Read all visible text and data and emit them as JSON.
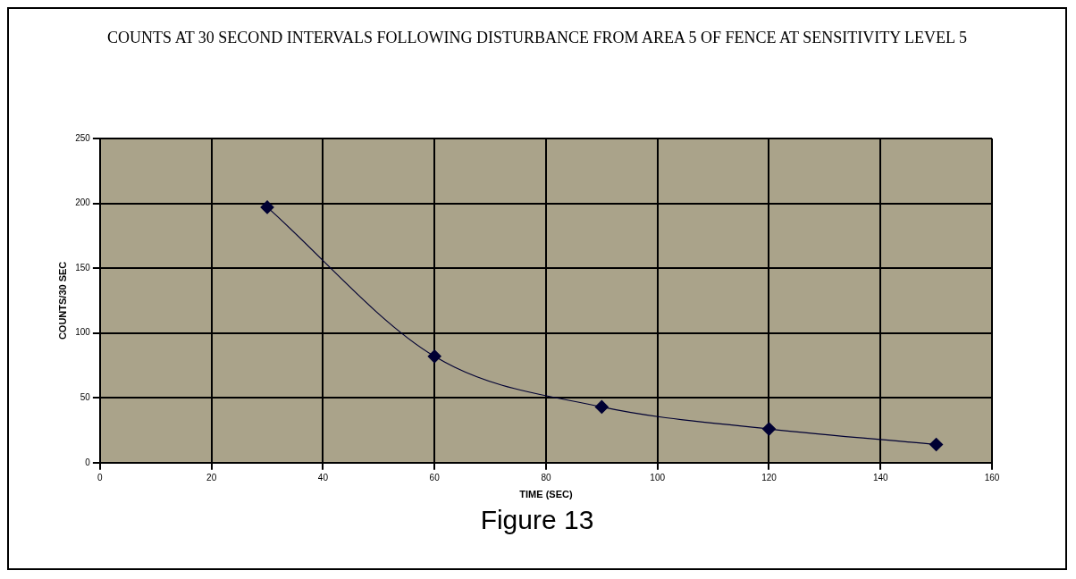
{
  "chart_data": {
    "type": "line",
    "title": "COUNTS AT 30 SECOND INTERVALS FOLLOWING DISTURBANCE FROM AREA 5 OF FENCE AT SENSITIVITY LEVEL 5",
    "xlabel": "TIME (SEC)",
    "ylabel": "COUNTS/30 SEC",
    "x": [
      30,
      60,
      90,
      120,
      150
    ],
    "series": [
      {
        "color": "#000033",
        "values": [
          197,
          82,
          43,
          26,
          14
        ]
      }
    ],
    "xlim": [
      0,
      160
    ],
    "xticks": [
      0,
      20,
      40,
      60,
      80,
      100,
      120,
      140,
      160
    ],
    "ylim": [
      0,
      250
    ],
    "yticks": [
      0,
      50,
      100,
      150,
      200,
      250
    ],
    "grid": true,
    "legend": false,
    "marker": "diamond",
    "line_style": "solid",
    "annotations": [
      "Figure 13"
    ]
  }
}
